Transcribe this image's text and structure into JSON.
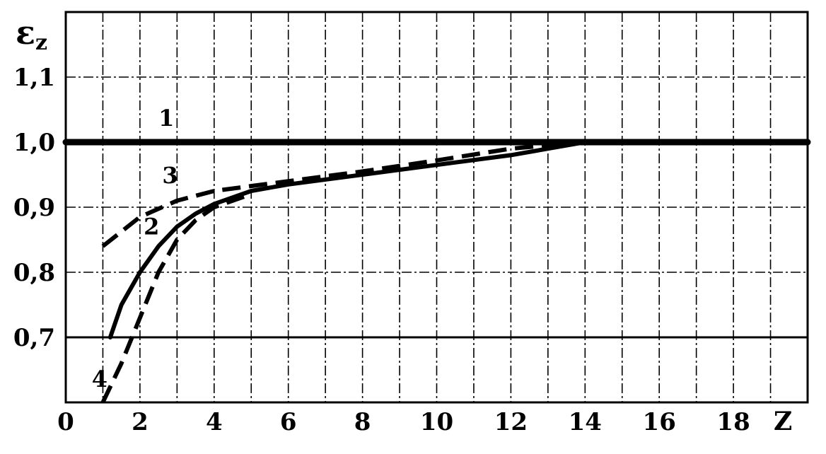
{
  "chart_data": {
    "type": "line",
    "ylabel_main": "ε",
    "ylabel_sub": "z",
    "xlabel": "Z",
    "xlim": [
      0,
      20
    ],
    "ylim": [
      0.6,
      1.2
    ],
    "grid": true,
    "x_ticks": [
      {
        "value": 0,
        "label": "0"
      },
      {
        "value": 2,
        "label": "2"
      },
      {
        "value": 4,
        "label": "4"
      },
      {
        "value": 6,
        "label": "6"
      },
      {
        "value": 8,
        "label": "8"
      },
      {
        "value": 10,
        "label": "10"
      },
      {
        "value": 12,
        "label": "12"
      },
      {
        "value": 14,
        "label": "14"
      },
      {
        "value": 16,
        "label": "16"
      },
      {
        "value": 18,
        "label": "18"
      }
    ],
    "y_ticks": [
      {
        "value": 0.7,
        "label": "0,7"
      },
      {
        "value": 0.8,
        "label": "0,8"
      },
      {
        "value": 0.9,
        "label": "0,9"
      },
      {
        "value": 1.0,
        "label": "1,0"
      },
      {
        "value": 1.1,
        "label": "1,1"
      }
    ],
    "series": [
      {
        "name": "1",
        "style": "solid",
        "width": 9,
        "points": [
          [
            0,
            1.0
          ],
          [
            20,
            1.0
          ]
        ],
        "label_at": [
          2.5,
          1.025
        ]
      },
      {
        "name": "2",
        "style": "solid",
        "width": 6,
        "points": [
          [
            1.2,
            0.7
          ],
          [
            1.5,
            0.75
          ],
          [
            2,
            0.8
          ],
          [
            2.5,
            0.84
          ],
          [
            3,
            0.87
          ],
          [
            3.5,
            0.89
          ],
          [
            4,
            0.905
          ],
          [
            5,
            0.925
          ],
          [
            6,
            0.935
          ],
          [
            8,
            0.95
          ],
          [
            10,
            0.965
          ],
          [
            12,
            0.98
          ],
          [
            13,
            0.99
          ],
          [
            14,
            1.0
          ]
        ],
        "label_at": [
          2.1,
          0.858
        ]
      },
      {
        "name": "3",
        "style": "dashed",
        "width": 6,
        "points": [
          [
            1,
            0.84
          ],
          [
            2,
            0.885
          ],
          [
            3,
            0.91
          ],
          [
            4,
            0.925
          ],
          [
            6,
            0.94
          ],
          [
            8,
            0.955
          ],
          [
            10,
            0.972
          ],
          [
            12,
            0.99
          ],
          [
            13,
            0.995
          ],
          [
            14,
            1.0
          ]
        ],
        "label_at": [
          2.6,
          0.937
        ]
      },
      {
        "name": "4",
        "style": "dashed",
        "width": 6,
        "points": [
          [
            1,
            0.6
          ],
          [
            1.5,
            0.66
          ],
          [
            2,
            0.73
          ],
          [
            2.5,
            0.8
          ],
          [
            3,
            0.85
          ],
          [
            3.5,
            0.88
          ],
          [
            4,
            0.9
          ],
          [
            5,
            0.92
          ]
        ],
        "label_at": [
          0.7,
          0.624
        ]
      }
    ]
  }
}
